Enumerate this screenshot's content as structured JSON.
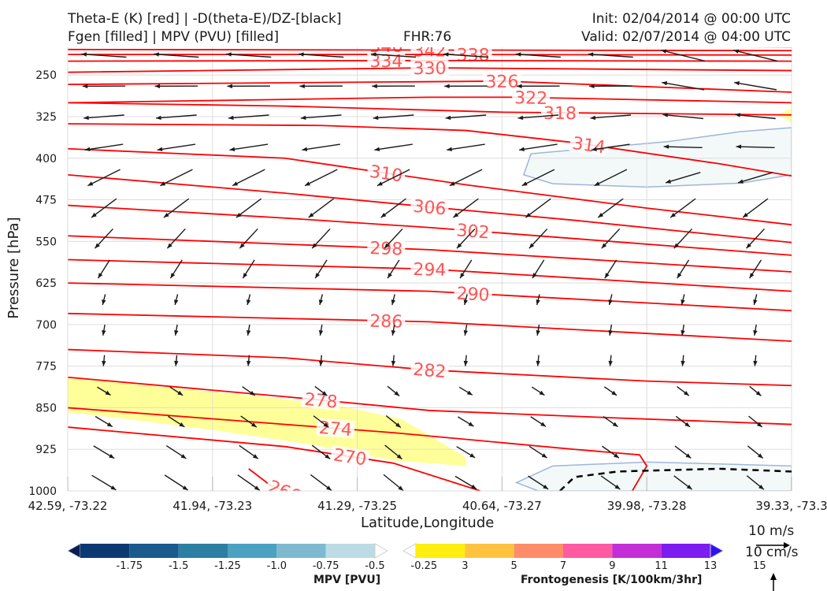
{
  "header": {
    "title_left_1": "Theta-E (K) [red] | -D(theta-E)/DZ-[black]",
    "title_left_2": "Fgen [filled] | MPV (PVU) [filled]",
    "title_center": "FHR:76",
    "title_right_1": "Init: 02/04/2014 @ 00:00 UTC",
    "title_right_2": "Valid: 02/07/2014 @ 04:00 UTC"
  },
  "chart_data": {
    "type": "cross-section",
    "xlabel": "Latitude,Longitude",
    "ylabel": "Pressure [hPa]",
    "x_ticks": [
      "42.59, -73.22",
      "41.94, -73.23",
      "41.29, -73.25",
      "40.64, -73.27",
      "39.98, -73.28",
      "39.33, -73.3"
    ],
    "y_ticks": [
      250,
      325,
      400,
      475,
      550,
      625,
      700,
      775,
      850,
      925,
      1000
    ],
    "ylim": [
      1000,
      200
    ],
    "grid": true,
    "theta_e_contours": [
      {
        "label": "346",
        "points": [
          [
            0,
            196
          ],
          [
            0.5,
            197
          ],
          [
            1,
            199
          ]
        ]
      },
      {
        "label": "342",
        "points": [
          [
            0,
            204
          ],
          [
            0.5,
            205
          ],
          [
            1,
            206
          ]
        ]
      },
      {
        "label": "338",
        "points": [
          [
            0,
            213
          ],
          [
            0.5,
            213
          ],
          [
            1,
            214
          ]
        ]
      },
      {
        "label": "334",
        "points": [
          [
            0,
            225
          ],
          [
            0.5,
            224
          ],
          [
            1,
            225
          ]
        ]
      },
      {
        "label": "330",
        "points": [
          [
            0,
            245
          ],
          [
            0.5,
            237
          ],
          [
            1,
            242
          ]
        ]
      },
      {
        "label": "326",
        "points": [
          [
            0,
            267
          ],
          [
            0.6,
            261
          ],
          [
            1,
            281
          ]
        ]
      },
      {
        "label": "322",
        "points": [
          [
            0,
            300
          ],
          [
            0.5,
            290
          ],
          [
            0.62,
            290
          ],
          [
            1,
            300
          ]
        ]
      },
      {
        "label": "318",
        "points": [
          [
            0,
            300
          ],
          [
            0.3,
            306
          ],
          [
            0.6,
            317
          ],
          [
            1,
            322
          ]
        ]
      },
      {
        "label": "314",
        "points": [
          [
            0,
            338
          ],
          [
            0.35,
            341
          ],
          [
            0.55,
            350
          ],
          [
            0.7,
            372
          ],
          [
            0.9,
            410
          ],
          [
            1,
            432
          ]
        ]
      },
      {
        "label": "310",
        "points": [
          [
            0,
            383
          ],
          [
            0.3,
            400
          ],
          [
            0.55,
            448
          ],
          [
            0.8,
            490
          ],
          [
            1,
            520
          ]
        ]
      },
      {
        "label": "306",
        "points": [
          [
            0,
            430
          ],
          [
            0.3,
            463
          ],
          [
            0.5,
            488
          ],
          [
            0.7,
            512
          ],
          [
            1,
            552
          ]
        ]
      },
      {
        "label": "302",
        "points": [
          [
            0,
            485
          ],
          [
            0.3,
            508
          ],
          [
            0.5,
            525
          ],
          [
            0.7,
            545
          ],
          [
            1,
            575
          ]
        ]
      },
      {
        "label": "298",
        "points": [
          [
            0,
            540
          ],
          [
            0.5,
            565
          ],
          [
            1,
            605
          ]
        ]
      },
      {
        "label": "294",
        "points": [
          [
            0,
            583
          ],
          [
            0.5,
            600
          ],
          [
            1,
            640
          ]
        ]
      },
      {
        "label": "290",
        "points": [
          [
            0,
            625
          ],
          [
            0.5,
            640
          ],
          [
            1,
            675
          ]
        ]
      },
      {
        "label": "286",
        "points": [
          [
            0,
            680
          ],
          [
            0.5,
            695
          ],
          [
            1,
            730
          ]
        ]
      },
      {
        "label": "282",
        "points": [
          [
            0,
            745
          ],
          [
            0.3,
            760
          ],
          [
            0.5,
            782
          ],
          [
            0.8,
            802
          ],
          [
            1,
            810
          ]
        ]
      },
      {
        "label": "278",
        "points": [
          [
            0,
            795
          ],
          [
            0.3,
            830
          ],
          [
            0.5,
            855
          ],
          [
            0.75,
            868
          ],
          [
            1,
            880
          ]
        ]
      },
      {
        "label": "274",
        "points": [
          [
            0,
            850
          ],
          [
            0.2,
            870
          ],
          [
            0.45,
            895
          ],
          [
            0.7,
            925
          ],
          [
            0.79,
            935
          ],
          [
            0.8,
            955
          ],
          [
            0.78,
            1000
          ]
        ]
      },
      {
        "label": "270",
        "points": [
          [
            0,
            885
          ],
          [
            0.3,
            920
          ],
          [
            0.45,
            950
          ],
          [
            0.57,
            1000
          ]
        ]
      },
      {
        "label": "266",
        "points": [
          [
            0.25,
            960
          ],
          [
            0.28,
            990
          ],
          [
            0.3,
            1000
          ]
        ]
      }
    ],
    "black_dashed_contour": [
      [
        0.68,
        1000
      ],
      [
        0.7,
        975
      ],
      [
        0.76,
        965
      ],
      [
        0.9,
        960
      ],
      [
        1,
        965
      ]
    ],
    "mpv_colorbar": {
      "title": "MPV [PVU]",
      "ticks": [
        "-1.75",
        "-1.5",
        "-1.25",
        "-1.0",
        "-0.75",
        "-0.5",
        "-0.25"
      ],
      "colors": [
        "#081d58",
        "#0b3a73",
        "#1b5a8c",
        "#2c7fa3",
        "#4ba1c0",
        "#7dbad0",
        "#bcdbe4",
        "#ffffff"
      ]
    },
    "fgen_colorbar": {
      "title": "Frontogenesis [K/100km/3hr]",
      "ticks": [
        "3",
        "5",
        "7",
        "9",
        "11",
        "13",
        "15"
      ],
      "colors": [
        "#ffffff",
        "#ffee10",
        "#ffc340",
        "#ff8c69",
        "#ff5aa2",
        "#c42ed6",
        "#7c1ef0",
        "#2d12f6"
      ]
    },
    "vector_key": {
      "horizontal": "10 m/s",
      "vertical": "10 cm/s"
    },
    "colors": {
      "theta_e": "#ff0000",
      "theta_e_label": "#ff5555",
      "fgen_fill": "#ffff99",
      "mpv_fill": "#f3f9f9",
      "mpv_edge": "#9fb5d8"
    }
  }
}
